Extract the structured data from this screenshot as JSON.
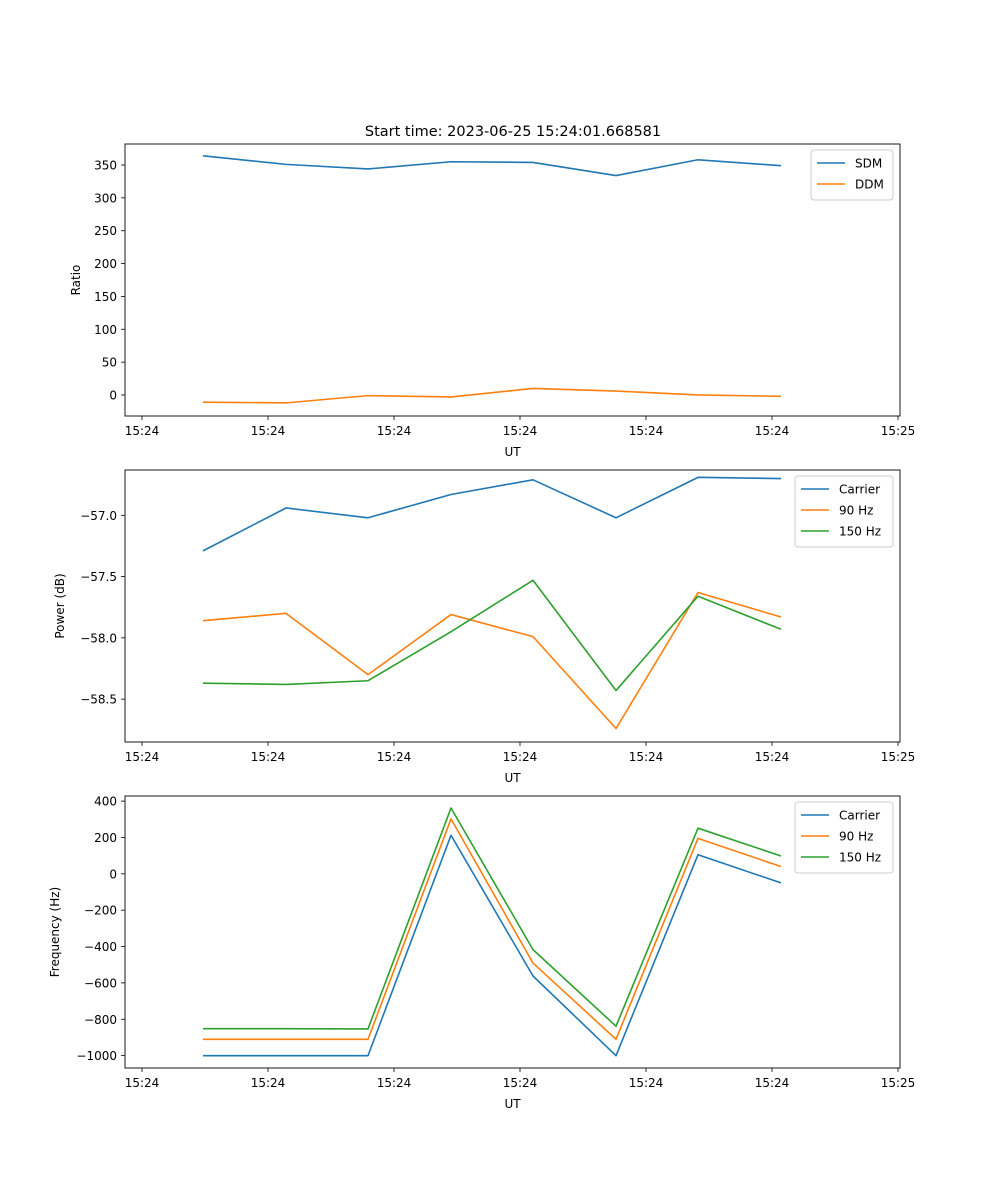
{
  "suptitle": "Start time: 2023-06-25 15:24:01.668581",
  "chart_data": [
    {
      "type": "line",
      "title": "Start time: 2023-06-25 15:24:01.668581",
      "xlabel": "UT",
      "ylabel": "Ratio",
      "x_tick_labels": [
        "15:24",
        "15:24",
        "15:24",
        "15:24",
        "15:24",
        "15:24",
        "15:24",
        "15:25"
      ],
      "y_ticks": [
        0,
        50,
        100,
        150,
        200,
        250,
        300,
        350
      ],
      "y_tick_labels": [
        "0",
        "50",
        "100",
        "150",
        "200",
        "250",
        "300",
        "350"
      ],
      "ylim": [
        -32,
        382
      ],
      "legend_position": "top-right",
      "grid": false,
      "series": [
        {
          "name": "SDM",
          "color": "#1f77b4",
          "values": [
            364,
            351,
            344,
            355,
            354,
            334,
            358,
            349
          ]
        },
        {
          "name": "DDM",
          "color": "#ff7f0e",
          "values": [
            -11,
            -12,
            -1,
            -3,
            10,
            6,
            0,
            -2
          ]
        }
      ]
    },
    {
      "type": "line",
      "title": "",
      "xlabel": "UT",
      "ylabel": "Power (dB)",
      "x_tick_labels": [
        "15:24",
        "15:24",
        "15:24",
        "15:24",
        "15:24",
        "15:24",
        "15:24",
        "15:25"
      ],
      "y_ticks": [
        -58.5,
        -58.0,
        -57.5,
        -57.0
      ],
      "y_tick_labels": [
        "−58.5",
        "−58.0",
        "−57.5",
        "−57.0"
      ],
      "ylim": [
        -58.85,
        -56.63
      ],
      "legend_position": "top-right",
      "grid": false,
      "series": [
        {
          "name": "Carrier",
          "color": "#1f77b4",
          "values": [
            -57.29,
            -56.94,
            -57.02,
            -56.83,
            -56.71,
            -57.02,
            -56.69,
            -56.7
          ]
        },
        {
          "name": "90 Hz",
          "color": "#ff7f0e",
          "values": [
            -57.86,
            -57.8,
            -58.3,
            -57.81,
            -57.99,
            -58.74,
            -57.63,
            -57.83
          ]
        },
        {
          "name": "150 Hz",
          "color": "#2ca02c",
          "values": [
            -58.37,
            -58.38,
            -58.35,
            -57.95,
            -57.53,
            -58.43,
            -57.66,
            -57.93
          ]
        }
      ]
    },
    {
      "type": "line",
      "title": "",
      "xlabel": "UT",
      "ylabel": "Frequency (Hz)",
      "x_tick_labels": [
        "15:24",
        "15:24",
        "15:24",
        "15:24",
        "15:24",
        "15:24",
        "15:24",
        "15:25"
      ],
      "y_ticks": [
        -1000,
        -800,
        -600,
        -400,
        -200,
        0,
        200,
        400
      ],
      "y_tick_labels": [
        "−1000",
        "−800",
        "−600",
        "−400",
        "−200",
        "0",
        "200",
        "400"
      ],
      "ylim": [
        -1068,
        428
      ],
      "legend_position": "top-right",
      "grid": false,
      "series": [
        {
          "name": "Carrier",
          "color": "#1f77b4",
          "values": [
            -1000,
            -1000,
            -1000,
            212,
            -562,
            -1000,
            105,
            -50
          ]
        },
        {
          "name": "90 Hz",
          "color": "#ff7f0e",
          "values": [
            -910,
            -910,
            -910,
            302,
            -491,
            -910,
            195,
            40
          ]
        },
        {
          "name": "150 Hz",
          "color": "#2ca02c",
          "values": [
            -852,
            -852,
            -853,
            362,
            -417,
            -838,
            251,
            98
          ]
        }
      ]
    }
  ]
}
